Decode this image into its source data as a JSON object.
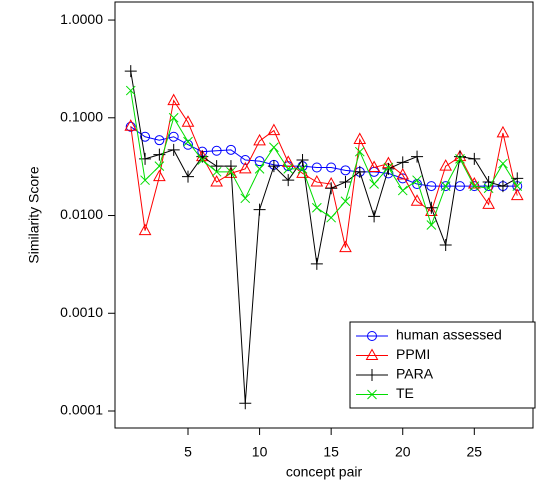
{
  "chart_data": {
    "type": "line",
    "x_label": "concept pair",
    "y_label": "Similarity Score",
    "x": [
      1,
      2,
      3,
      4,
      5,
      6,
      7,
      8,
      9,
      10,
      11,
      12,
      13,
      14,
      15,
      16,
      17,
      18,
      19,
      20,
      21,
      22,
      23,
      24,
      25,
      26,
      27,
      28
    ],
    "series": [
      {
        "name": "human assessed",
        "color": "#0000ff",
        "marker": "circle",
        "values": [
          0.081,
          0.064,
          0.059,
          0.064,
          0.053,
          0.045,
          0.046,
          0.047,
          0.037,
          0.036,
          0.033,
          0.032,
          0.032,
          0.031,
          0.031,
          0.029,
          0.028,
          0.028,
          0.027,
          0.024,
          0.021,
          0.02,
          0.02,
          0.02,
          0.02,
          0.02,
          0.02,
          0.02
        ]
      },
      {
        "name": "PPMI",
        "color": "#ff0000",
        "marker": "triangle",
        "values": [
          0.082,
          0.007,
          0.025,
          0.15,
          0.09,
          0.04,
          0.022,
          0.027,
          0.03,
          0.058,
          0.074,
          0.035,
          0.027,
          0.022,
          0.021,
          0.0047,
          0.06,
          0.031,
          0.034,
          0.026,
          0.014,
          0.011,
          0.032,
          0.04,
          0.021,
          0.013,
          0.07,
          0.016
        ]
      },
      {
        "name": "PARA",
        "color": "#000000",
        "marker": "plus",
        "values": [
          0.3,
          0.038,
          0.042,
          0.047,
          0.025,
          0.04,
          0.032,
          0.032,
          0.00012,
          0.0115,
          0.032,
          0.023,
          0.037,
          0.0032,
          0.019,
          0.022,
          0.028,
          0.0098,
          0.03,
          0.035,
          0.04,
          0.012,
          0.005,
          0.04,
          0.038,
          0.022,
          0.02,
          0.024
        ]
      },
      {
        "name": "TE",
        "color": "#00dd00",
        "marker": "cross",
        "values": [
          0.19,
          0.023,
          0.032,
          0.1,
          0.057,
          0.037,
          0.028,
          0.028,
          0.015,
          0.03,
          0.05,
          0.03,
          0.03,
          0.012,
          0.0095,
          0.014,
          0.045,
          0.021,
          0.031,
          0.018,
          0.023,
          0.008,
          0.02,
          0.038,
          0.02,
          0.019,
          0.034,
          0.02
        ]
      }
    ],
    "xlim": [
      -0.1,
      29.1
    ],
    "xticks": [
      5,
      10,
      15,
      20,
      25
    ],
    "ylim": [
      6.7e-05,
      1.53
    ],
    "log_scale_y": true,
    "yticks": [
      {
        "value": 1,
        "label": "1.0000"
      },
      {
        "value": 0.1,
        "label": "0.1000"
      },
      {
        "value": 0.01,
        "label": "0.0100"
      },
      {
        "value": 0.001,
        "label": "0.0010"
      },
      {
        "value": 0.0001,
        "label": "0.0001"
      }
    ],
    "legend": "bottom-right"
  }
}
